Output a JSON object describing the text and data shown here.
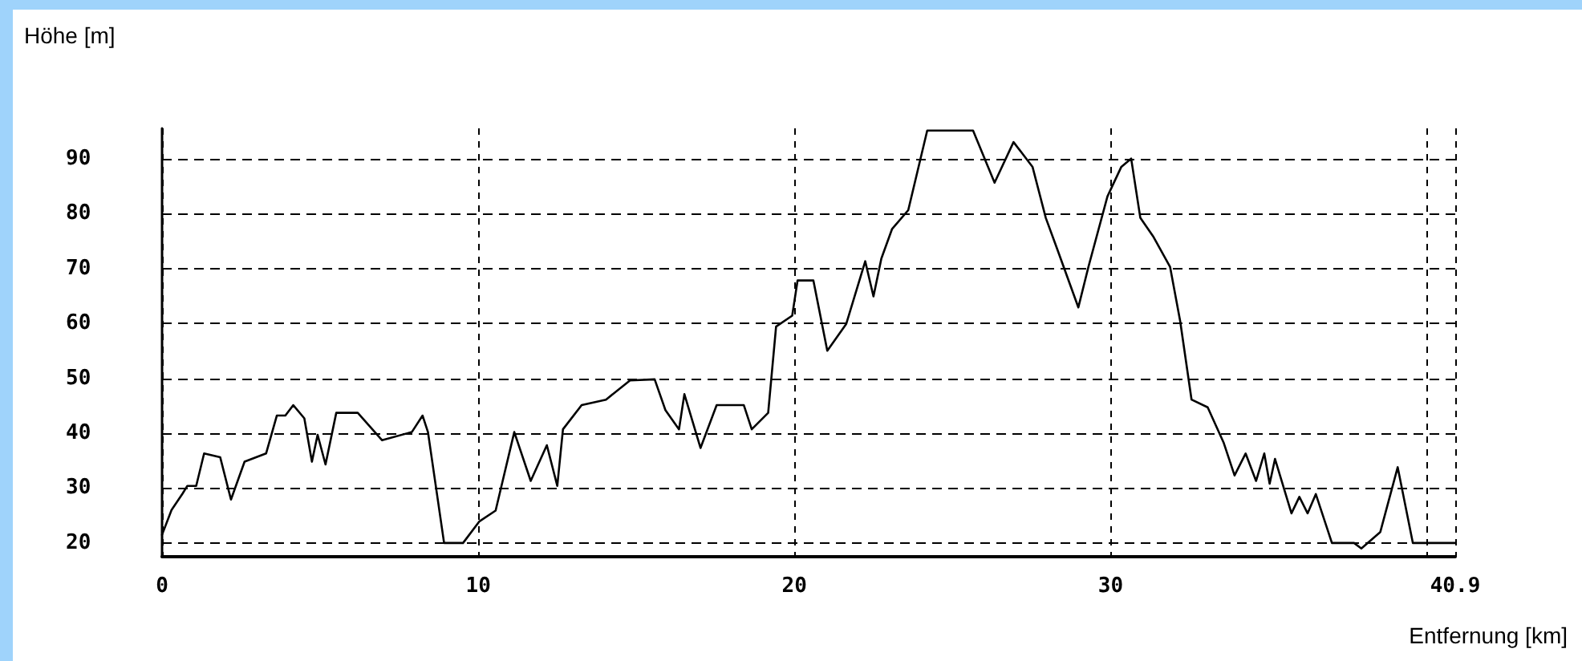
{
  "chart_data": {
    "type": "line",
    "ylabel": "Höhe [m]",
    "xlabel": "Entfernung [km]",
    "x": [
      0,
      0.3,
      0.65,
      0.8,
      1.08,
      1.33,
      1.84,
      2.18,
      2.61,
      3.29,
      3.63,
      3.9,
      4.15,
      4.5,
      4.74,
      4.92,
      5.17,
      5.51,
      6.19,
      6.96,
      7.9,
      8.24,
      8.41,
      8.92,
      9.52,
      10.03,
      10.55,
      11.14,
      11.66,
      12.17,
      12.5,
      12.68,
      13.27,
      14.04,
      14.8,
      15.58,
      15.92,
      16.35,
      16.52,
      17.03,
      17.54,
      18.4,
      18.65,
      19.17,
      19.42,
      19.93,
      20.1,
      20.6,
      21.04,
      21.64,
      22.24,
      22.5,
      22.75,
      23.09,
      23.6,
      24.2,
      25.65,
      26.33,
      26.93,
      27.53,
      27.95,
      28.3,
      28.98,
      29.3,
      29.9,
      30.34,
      30.65,
      30.94,
      31.36,
      31.88,
      32.2,
      32.56,
      33.07,
      33.58,
      33.92,
      34.27,
      34.6,
      34.86,
      35.03,
      35.2,
      35.72,
      35.97,
      36.23,
      36.49,
      37.0,
      37.7,
      37.93,
      38.53,
      39.08,
      39.56,
      40.9
    ],
    "values": [
      21.5,
      26,
      29,
      30.4,
      30.4,
      36.3,
      35.6,
      27.9,
      34.8,
      36.3,
      43.2,
      43.2,
      45.1,
      42.7,
      34.8,
      39.7,
      34.3,
      43.7,
      43.7,
      38.7,
      40.2,
      43.2,
      40.2,
      20,
      20,
      23.9,
      25.9,
      40.2,
      31.3,
      37.8,
      30.4,
      40.7,
      45.1,
      46.1,
      49.6,
      49.8,
      44.2,
      40.7,
      47.1,
      37.3,
      45.1,
      45.1,
      40.7,
      43.7,
      59.4,
      61.4,
      67.8,
      67.8,
      55,
      59.9,
      71.3,
      64.9,
      71.8,
      77.2,
      80.6,
      95.1,
      95.1,
      85.6,
      93,
      88.5,
      79.2,
      73.7,
      62.9,
      70.3,
      83.1,
      88.5,
      90,
      79.2,
      75.7,
      70.3,
      60.4,
      46.1,
      44.7,
      38.2,
      32.3,
      36.3,
      31.3,
      36.3,
      30.8,
      35.3,
      25.4,
      28.4,
      25.4,
      28.9,
      20,
      20,
      19,
      22,
      33.8,
      20,
      20
    ],
    "color": "#000000",
    "line_style": "solid",
    "xlim": [
      0,
      40.9
    ],
    "xticks": [
      0,
      10,
      20,
      30,
      {
        "value": 40,
        "label": null
      },
      40.9
    ],
    "ylim": [
      17.5,
      95.5
    ],
    "yticks": [
      20,
      30,
      40,
      50,
      60,
      70,
      80,
      90
    ],
    "grid": true
  }
}
